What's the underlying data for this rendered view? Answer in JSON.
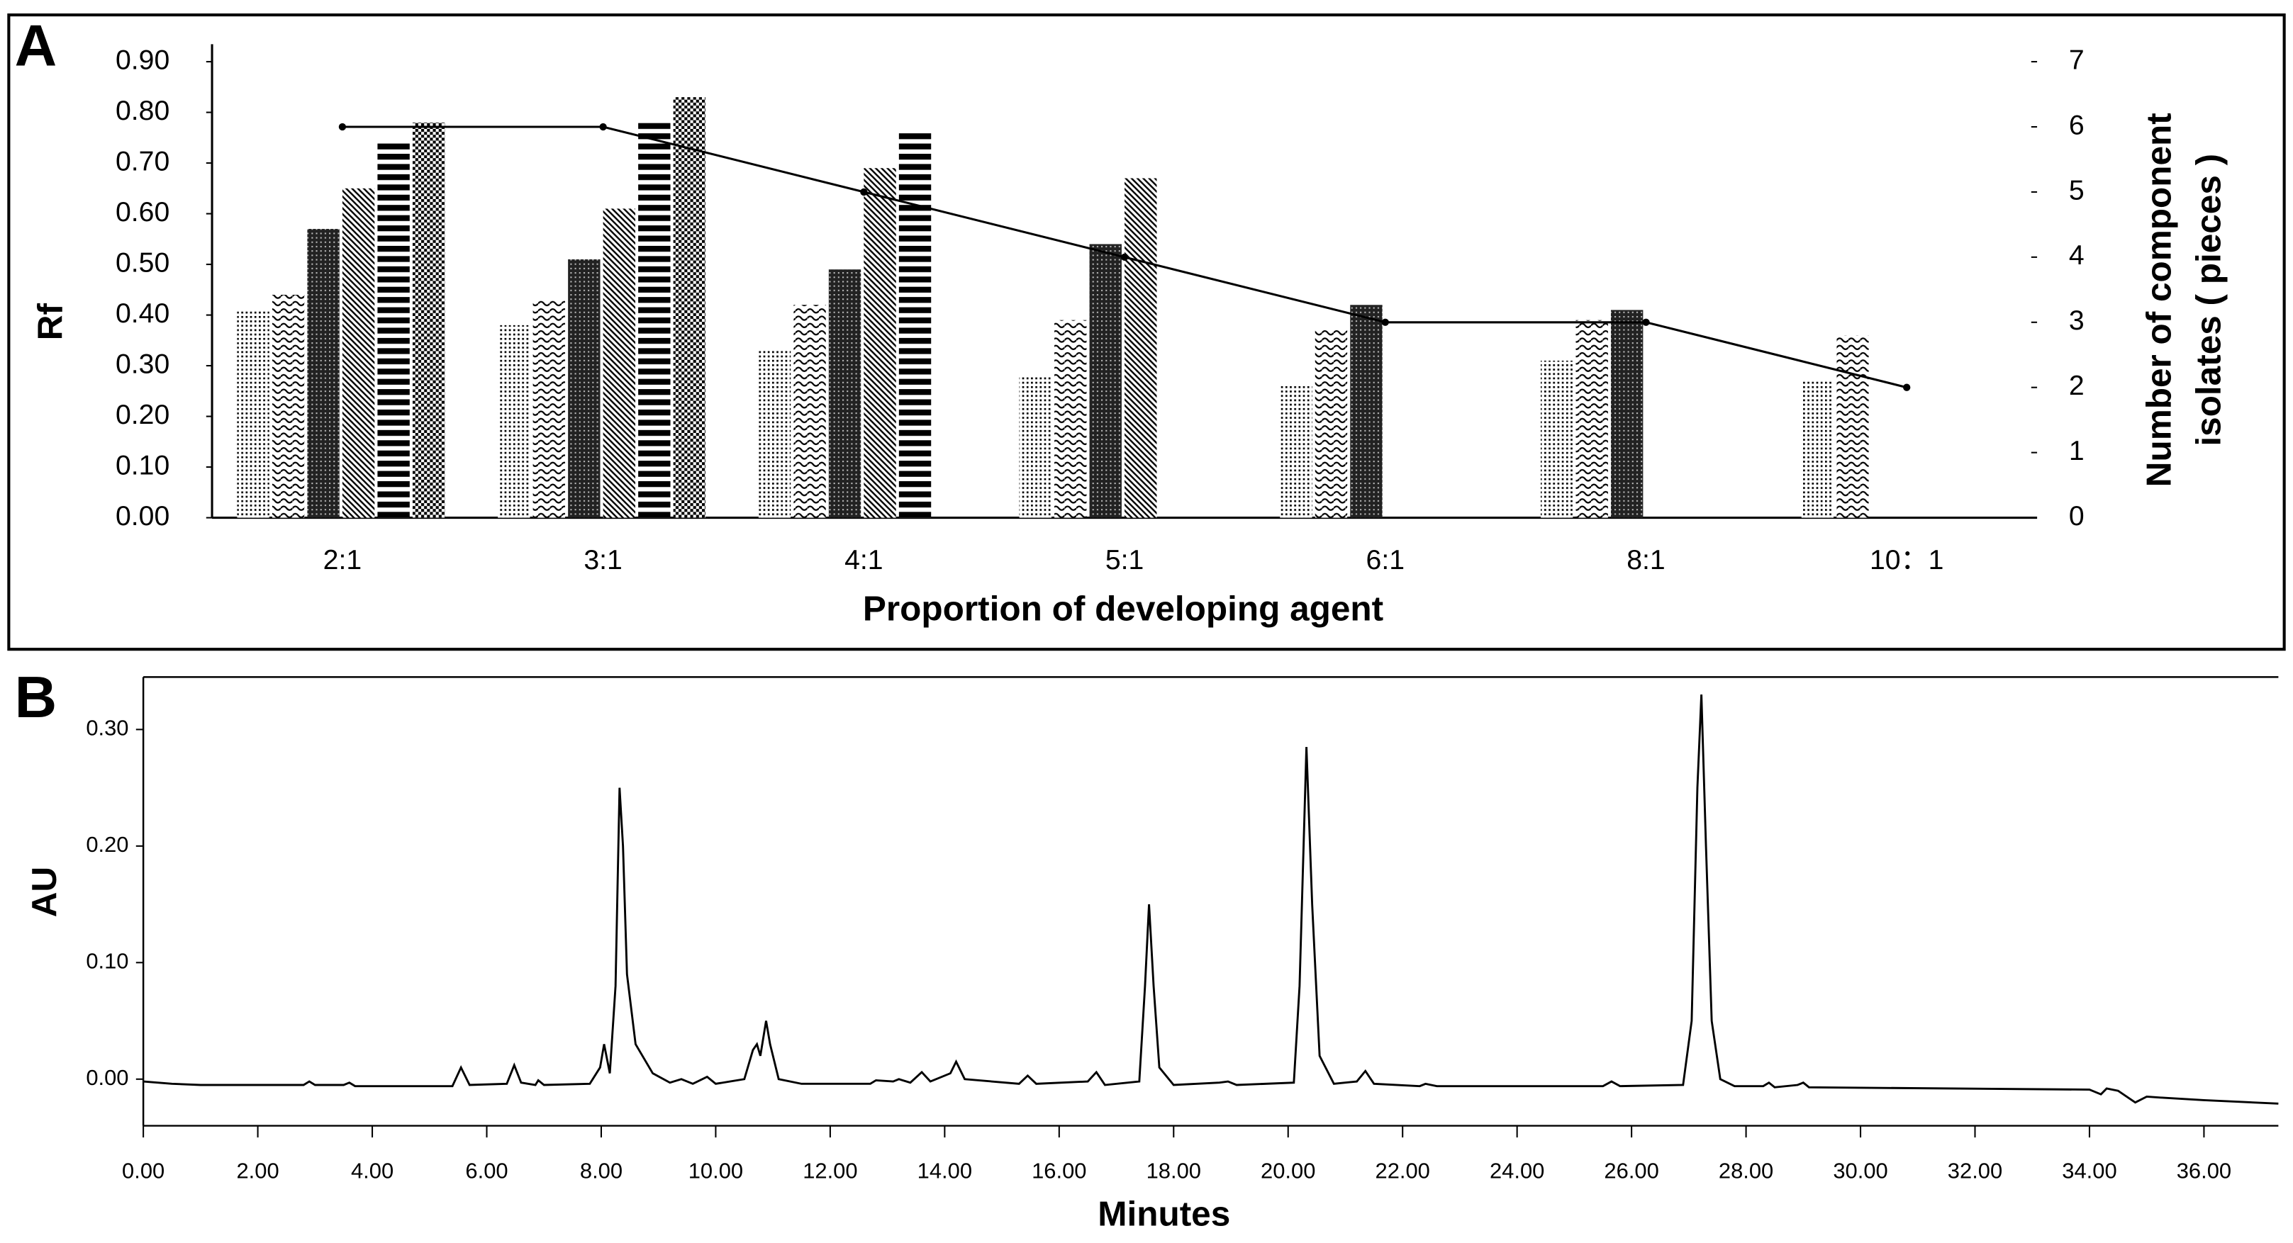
{
  "chart_data": [
    {
      "type": "bar",
      "panel_label": "A",
      "categories": [
        "2:1",
        "3:1",
        "4:1",
        "5:1",
        "6:1",
        "8:1",
        "10：1"
      ],
      "x_label": "Proportion of developing agent",
      "y_label": "Rf",
      "y2_label": [
        "Number of component",
        "isolates ( pieces )"
      ],
      "ylim": [
        0,
        0.9
      ],
      "yticks": [
        {
          "value": 0,
          "label": "0.00"
        },
        {
          "value": 0.1,
          "label": "0.10"
        },
        {
          "value": 0.2,
          "label": "0.20"
        },
        {
          "value": 0.3,
          "label": "0.30"
        },
        {
          "value": 0.4,
          "label": "0.40"
        },
        {
          "value": 0.5,
          "label": "0.50"
        },
        {
          "value": 0.6,
          "label": "0.60"
        },
        {
          "value": 0.7,
          "label": "0.70"
        },
        {
          "value": 0.8,
          "label": "0.80"
        },
        {
          "value": 0.9,
          "label": "0.90"
        }
      ],
      "y2lim": [
        0,
        7
      ],
      "y2ticks": [
        0,
        1,
        2,
        3,
        4,
        5,
        6,
        7
      ],
      "series": [
        {
          "color": "#000000",
          "pattern": "dots",
          "values": [
            0.41,
            0.38,
            0.33,
            0.28,
            0.26,
            0.31,
            0.27
          ]
        },
        {
          "color": "#000000",
          "pattern": "wave",
          "values": [
            0.44,
            0.43,
            0.42,
            0.39,
            0.37,
            0.39,
            0.36
          ]
        },
        {
          "color": "#000000",
          "pattern": "dense",
          "values": [
            0.57,
            0.51,
            0.49,
            0.54,
            0.42,
            0.41,
            null
          ]
        },
        {
          "color": "#000000",
          "pattern": "diag",
          "values": [
            0.65,
            0.61,
            0.69,
            0.67,
            null,
            null,
            null
          ]
        },
        {
          "color": "#000000",
          "pattern": "hstripe",
          "values": [
            0.74,
            0.78,
            0.76,
            null,
            null,
            null,
            null
          ]
        },
        {
          "color": "#000000",
          "pattern": "checker",
          "values": [
            0.78,
            0.83,
            null,
            null,
            null,
            null,
            null
          ]
        },
        {
          "type": "line",
          "axis": "y2",
          "color": "#000000",
          "values": [
            6,
            6,
            5,
            4,
            3,
            3,
            2
          ]
        }
      ]
    },
    {
      "type": "line",
      "panel_label": "B",
      "x_label": "Minutes",
      "y_label": "AU",
      "color": "#000000",
      "xlim": [
        0,
        37.3
      ],
      "ylim": [
        -0.04,
        0.345
      ],
      "xticks": [
        {
          "value": 0,
          "label": "0.00"
        },
        {
          "value": 2,
          "label": "2.00"
        },
        {
          "value": 4,
          "label": "4.00"
        },
        {
          "value": 6,
          "label": "6.00"
        },
        {
          "value": 8,
          "label": "8.00"
        },
        {
          "value": 10,
          "label": "10.00"
        },
        {
          "value": 12,
          "label": "12.00"
        },
        {
          "value": 14,
          "label": "14.00"
        },
        {
          "value": 16,
          "label": "16.00"
        },
        {
          "value": 18,
          "label": "18.00"
        },
        {
          "value": 20,
          "label": "20.00"
        },
        {
          "value": 22,
          "label": "22.00"
        },
        {
          "value": 24,
          "label": "24.00"
        },
        {
          "value": 26,
          "label": "26.00"
        },
        {
          "value": 28,
          "label": "28.00"
        },
        {
          "value": 30,
          "label": "30.00"
        },
        {
          "value": 32,
          "label": "32.00"
        },
        {
          "value": 34,
          "label": "34.00"
        },
        {
          "value": 36,
          "label": "36.00"
        }
      ],
      "yticks": [
        {
          "value": 0,
          "label": "0.00"
        },
        {
          "value": 0.1,
          "label": "0.10"
        },
        {
          "value": 0.2,
          "label": "0.20"
        },
        {
          "value": 0.3,
          "label": "0.30"
        }
      ],
      "x": [
        0,
        0.5,
        1,
        2.8,
        2.9,
        3.0,
        3.5,
        3.6,
        3.7,
        5.4,
        5.55,
        5.7,
        6.35,
        6.48,
        6.6,
        6.85,
        6.9,
        7.0,
        7.8,
        7.98,
        8.05,
        8.15,
        8.25,
        8.32,
        8.38,
        8.45,
        8.6,
        8.9,
        9.2,
        9.4,
        9.6,
        9.85,
        10.0,
        10.5,
        10.65,
        10.72,
        10.78,
        10.88,
        10.95,
        11.1,
        11.5,
        12.7,
        12.8,
        13.1,
        13.2,
        13.4,
        13.6,
        13.75,
        14.1,
        14.2,
        14.35,
        15.3,
        15.45,
        15.6,
        16.5,
        16.65,
        16.8,
        17.4,
        17.5,
        17.57,
        17.65,
        17.75,
        18.0,
        18.8,
        18.95,
        19.1,
        20.1,
        20.2,
        20.32,
        20.42,
        20.55,
        20.8,
        21.2,
        21.35,
        21.5,
        22.3,
        22.4,
        22.6,
        25.5,
        25.65,
        25.8,
        26.9,
        27.05,
        27.15,
        27.22,
        27.3,
        27.4,
        27.55,
        27.8,
        28.3,
        28.4,
        28.5,
        28.9,
        29.0,
        29.1,
        34.0,
        34.2,
        34.3,
        34.5,
        34.8,
        35.0,
        35.3,
        36.0,
        37.3
      ],
      "values": [
        -0.002,
        -0.004,
        -0.005,
        -0.005,
        -0.002,
        -0.005,
        -0.005,
        -0.003,
        -0.006,
        -0.006,
        0.01,
        -0.005,
        -0.004,
        0.012,
        -0.003,
        -0.005,
        -0.001,
        -0.005,
        -0.004,
        0.01,
        0.03,
        0.005,
        0.08,
        0.25,
        0.2,
        0.09,
        0.03,
        0.005,
        -0.003,
        0.0,
        -0.004,
        0.002,
        -0.004,
        0.0,
        0.025,
        0.03,
        0.02,
        0.05,
        0.03,
        0.0,
        -0.004,
        -0.004,
        -0.001,
        -0.002,
        0.0,
        -0.003,
        0.006,
        -0.002,
        0.005,
        0.015,
        0.0,
        -0.004,
        0.003,
        -0.004,
        -0.002,
        0.006,
        -0.005,
        -0.002,
        0.08,
        0.15,
        0.08,
        0.01,
        -0.005,
        -0.003,
        -0.002,
        -0.005,
        -0.003,
        0.08,
        0.285,
        0.15,
        0.02,
        -0.004,
        -0.002,
        0.007,
        -0.004,
        -0.006,
        -0.004,
        -0.006,
        -0.006,
        -0.002,
        -0.006,
        -0.005,
        0.05,
        0.25,
        0.33,
        0.2,
        0.05,
        0.0,
        -0.006,
        -0.006,
        -0.003,
        -0.007,
        -0.005,
        -0.003,
        -0.007,
        -0.009,
        -0.013,
        -0.008,
        -0.01,
        -0.02,
        -0.015,
        -0.016,
        -0.018,
        -0.021
      ]
    }
  ]
}
